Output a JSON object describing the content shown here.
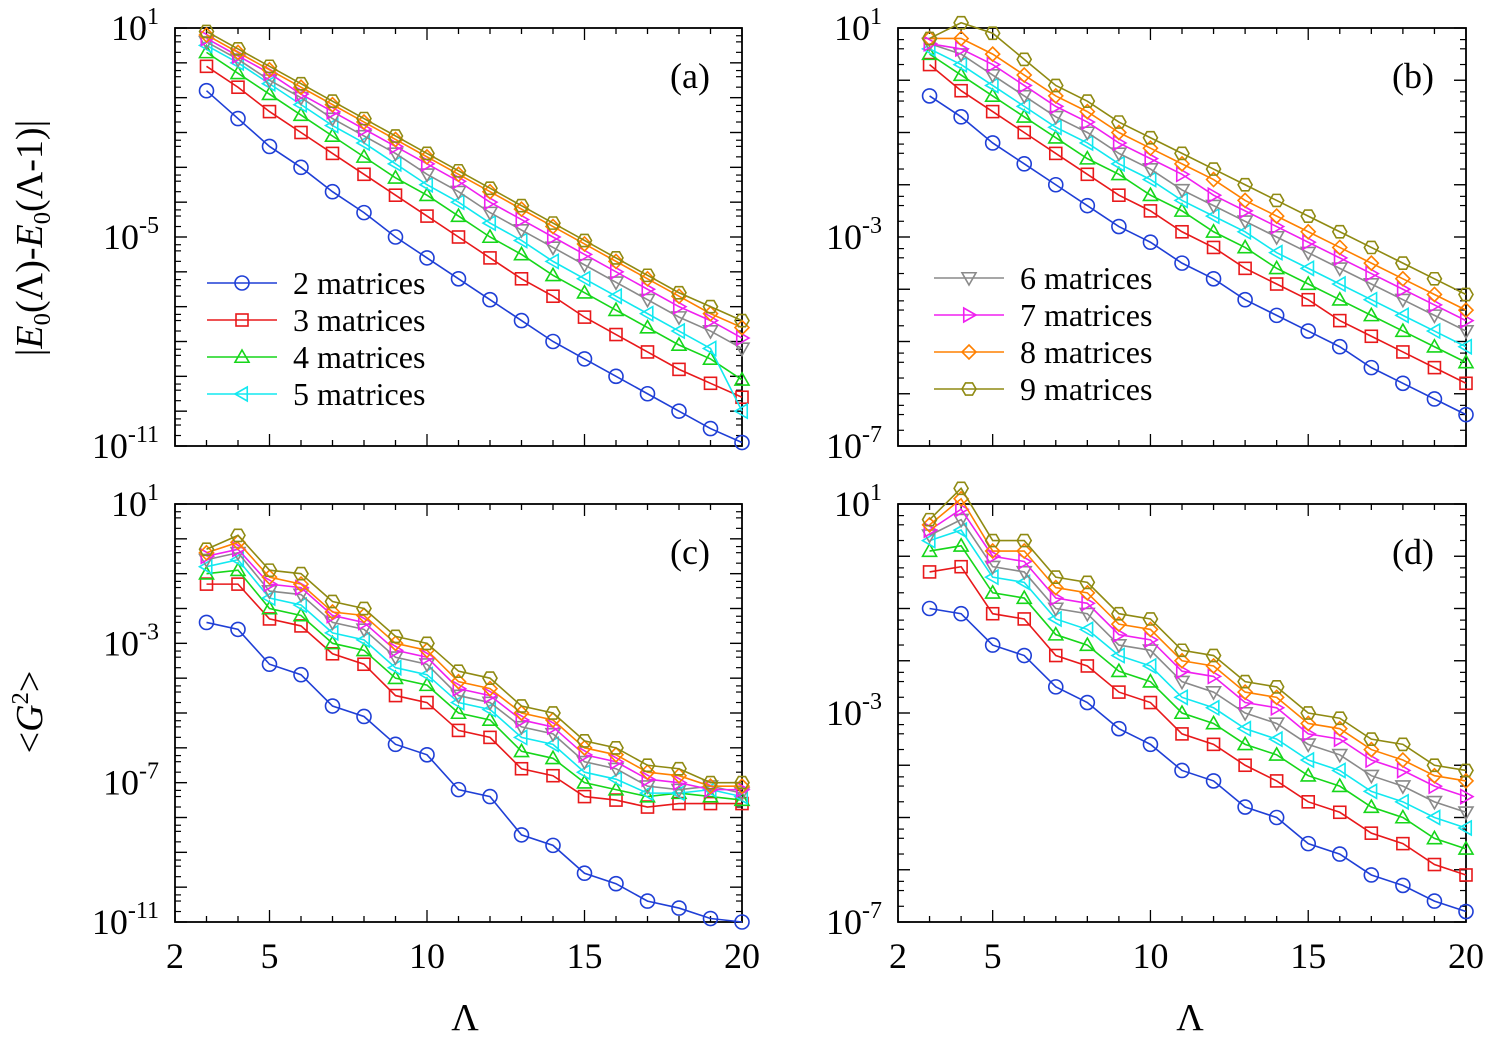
{
  "figure": {
    "ylabel_top": {
      "parts": [
        {
          "t": "|",
          "i": false
        },
        {
          "t": "E",
          "i": true
        },
        {
          "t": "0",
          "sub": true
        },
        {
          "t": "(Λ)-",
          "i": false
        },
        {
          "t": "E",
          "i": true
        },
        {
          "t": "0",
          "sub": true
        },
        {
          "t": "(Λ-1)|",
          "i": false
        }
      ]
    },
    "ylabel_bottom": {
      "parts": [
        {
          "t": "<",
          "i": false
        },
        {
          "t": "G",
          "i": true
        },
        {
          "t": "2",
          "sup": true
        },
        {
          "t": ">",
          "i": false
        }
      ]
    },
    "xlabel": "Λ"
  },
  "legend_names": [
    "2 matrices",
    "3 matrices",
    "4 matrices",
    "5 matrices",
    "6 matrices",
    "7 matrices",
    "8 matrices",
    "9 matrices"
  ],
  "series_style": [
    {
      "color": "#1f3fd6",
      "marker": "circle"
    },
    {
      "color": "#e8191b",
      "marker": "square"
    },
    {
      "color": "#16d61a",
      "marker": "triangle-up"
    },
    {
      "color": "#12e8f0",
      "marker": "triangle-left"
    },
    {
      "color": "#8a8a8a",
      "marker": "triangle-down"
    },
    {
      "color": "#f020f0",
      "marker": "triangle-right"
    },
    {
      "color": "#ff8000",
      "marker": "diamond"
    },
    {
      "color": "#8f8a12",
      "marker": "hexagon"
    }
  ],
  "chart_data": [
    {
      "panel": "(a)",
      "type": "line",
      "yscale": "log",
      "xlim": [
        2,
        20
      ],
      "xticks": [
        2,
        5,
        10,
        15,
        20
      ],
      "ylim_exp": [
        -11,
        1
      ],
      "ytick_labels_exp": [
        1,
        -5,
        -11
      ],
      "x": [
        3,
        4,
        5,
        6,
        7,
        8,
        9,
        10,
        11,
        12,
        13,
        14,
        15,
        16,
        17,
        18,
        19,
        20
      ],
      "legend_series": [
        0,
        1,
        2,
        3
      ],
      "series": [
        {
          "name": "2 matrices",
          "log10": [
            -0.8,
            -1.6,
            -2.4,
            -3.0,
            -3.7,
            -4.3,
            -5.0,
            -5.6,
            -6.2,
            -6.8,
            -7.4,
            -8.0,
            -8.5,
            -9.0,
            -9.5,
            -10.0,
            -10.5,
            -10.9
          ]
        },
        {
          "name": "3 matrices",
          "log10": [
            -0.1,
            -0.7,
            -1.4,
            -2.0,
            -2.6,
            -3.2,
            -3.8,
            -4.4,
            -5.0,
            -5.6,
            -6.2,
            -6.7,
            -7.3,
            -7.8,
            -8.3,
            -8.8,
            -9.2,
            -9.6
          ]
        },
        {
          "name": "4 matrices",
          "log10": [
            0.3,
            -0.3,
            -0.9,
            -1.5,
            -2.1,
            -2.7,
            -3.3,
            -3.8,
            -4.4,
            -5.0,
            -5.5,
            -6.1,
            -6.6,
            -7.1,
            -7.6,
            -8.1,
            -8.5,
            -9.1
          ]
        },
        {
          "name": "5 matrices",
          "log10": [
            0.5,
            0.0,
            -0.6,
            -1.2,
            -1.8,
            -2.3,
            -2.9,
            -3.5,
            -4.0,
            -4.6,
            -5.1,
            -5.7,
            -6.2,
            -6.7,
            -7.2,
            -7.7,
            -8.2,
            -10.0
          ]
        },
        {
          "name": "6 matrices",
          "log10": [
            0.6,
            0.1,
            -0.5,
            -1.0,
            -1.6,
            -2.1,
            -2.6,
            -3.2,
            -3.7,
            -4.3,
            -4.8,
            -5.3,
            -5.8,
            -6.3,
            -6.8,
            -7.3,
            -7.7,
            -8.2
          ]
        },
        {
          "name": "7 matrices",
          "log10": [
            0.7,
            0.2,
            -0.3,
            -0.9,
            -1.4,
            -1.9,
            -2.4,
            -2.9,
            -3.4,
            -4.0,
            -4.5,
            -5.0,
            -5.5,
            -6.0,
            -6.5,
            -7.0,
            -7.4,
            -7.9
          ]
        },
        {
          "name": "8 matrices",
          "log10": [
            0.8,
            0.3,
            -0.2,
            -0.7,
            -1.2,
            -1.7,
            -2.2,
            -2.7,
            -3.2,
            -3.7,
            -4.2,
            -4.7,
            -5.2,
            -5.7,
            -6.2,
            -6.7,
            -7.2,
            -7.6
          ]
        },
        {
          "name": "9 matrices",
          "log10": [
            0.9,
            0.4,
            -0.1,
            -0.6,
            -1.1,
            -1.6,
            -2.1,
            -2.6,
            -3.1,
            -3.6,
            -4.1,
            -4.6,
            -5.1,
            -5.6,
            -6.1,
            -6.6,
            -7.0,
            -7.4
          ]
        }
      ]
    },
    {
      "panel": "(b)",
      "type": "line",
      "yscale": "log",
      "xlim": [
        2,
        20
      ],
      "xticks": [
        2,
        5,
        10,
        15,
        20
      ],
      "ylim_exp": [
        -7,
        1
      ],
      "ytick_labels_exp": [
        1,
        -3,
        -7
      ],
      "x": [
        3,
        4,
        5,
        6,
        7,
        8,
        9,
        10,
        11,
        12,
        13,
        14,
        15,
        16,
        17,
        18,
        19,
        20
      ],
      "legend_series": [
        4,
        5,
        6,
        7
      ],
      "series": [
        {
          "name": "2 matrices",
          "log10": [
            -0.3,
            -0.7,
            -1.2,
            -1.6,
            -2.0,
            -2.4,
            -2.8,
            -3.1,
            -3.5,
            -3.8,
            -4.2,
            -4.5,
            -4.8,
            -5.1,
            -5.5,
            -5.8,
            -6.1,
            -6.4
          ]
        },
        {
          "name": "3 matrices",
          "log10": [
            0.3,
            -0.2,
            -0.6,
            -1.0,
            -1.4,
            -1.8,
            -2.2,
            -2.5,
            -2.9,
            -3.2,
            -3.6,
            -3.9,
            -4.2,
            -4.6,
            -4.9,
            -5.2,
            -5.5,
            -5.8
          ]
        },
        {
          "name": "4 matrices",
          "log10": [
            0.5,
            0.1,
            -0.3,
            -0.7,
            -1.1,
            -1.5,
            -1.8,
            -2.2,
            -2.5,
            -2.9,
            -3.2,
            -3.6,
            -3.9,
            -4.2,
            -4.5,
            -4.8,
            -5.1,
            -5.4
          ]
        },
        {
          "name": "5 matrices",
          "log10": [
            0.6,
            0.3,
            -0.1,
            -0.5,
            -0.9,
            -1.2,
            -1.6,
            -1.9,
            -2.3,
            -2.6,
            -2.9,
            -3.3,
            -3.6,
            -3.9,
            -4.2,
            -4.5,
            -4.8,
            -5.1
          ]
        },
        {
          "name": "6 matrices",
          "log10": [
            0.7,
            0.5,
            0.1,
            -0.3,
            -0.7,
            -1.0,
            -1.4,
            -1.7,
            -2.1,
            -2.4,
            -2.7,
            -3.0,
            -3.3,
            -3.6,
            -3.9,
            -4.2,
            -4.5,
            -4.8
          ]
        },
        {
          "name": "7 matrices",
          "log10": [
            0.7,
            0.6,
            0.3,
            -0.1,
            -0.5,
            -0.8,
            -1.2,
            -1.5,
            -1.8,
            -2.2,
            -2.5,
            -2.8,
            -3.1,
            -3.4,
            -3.7,
            -4.0,
            -4.3,
            -4.6
          ]
        },
        {
          "name": "8 matrices",
          "log10": [
            0.8,
            0.8,
            0.5,
            0.1,
            -0.3,
            -0.6,
            -1.0,
            -1.3,
            -1.6,
            -1.9,
            -2.3,
            -2.6,
            -2.9,
            -3.2,
            -3.5,
            -3.8,
            -4.1,
            -4.4
          ]
        },
        {
          "name": "9 matrices",
          "log10": [
            0.8,
            1.1,
            0.9,
            0.4,
            -0.1,
            -0.4,
            -0.8,
            -1.1,
            -1.4,
            -1.7,
            -2.0,
            -2.3,
            -2.6,
            -2.9,
            -3.2,
            -3.5,
            -3.8,
            -4.1
          ]
        }
      ]
    },
    {
      "panel": "(c)",
      "type": "line",
      "yscale": "log",
      "xlim": [
        2,
        20
      ],
      "xticks": [
        2,
        5,
        10,
        15,
        20
      ],
      "ylim_exp": [
        -11,
        1
      ],
      "ytick_labels_exp": [
        1,
        -3,
        -7,
        -11
      ],
      "x": [
        3,
        4,
        5,
        6,
        7,
        8,
        9,
        10,
        11,
        12,
        13,
        14,
        15,
        16,
        17,
        18,
        19,
        20
      ],
      "legend_series": [],
      "series": [
        {
          "name": "2 matrices",
          "log10": [
            -2.4,
            -2.6,
            -3.6,
            -3.9,
            -4.8,
            -5.1,
            -5.9,
            -6.2,
            -7.2,
            -7.4,
            -8.5,
            -8.8,
            -9.6,
            -9.9,
            -10.4,
            -10.6,
            -10.9,
            -11.0
          ]
        },
        {
          "name": "3 matrices",
          "log10": [
            -1.3,
            -1.3,
            -2.3,
            -2.5,
            -3.3,
            -3.6,
            -4.5,
            -4.7,
            -5.5,
            -5.7,
            -6.6,
            -6.8,
            -7.4,
            -7.5,
            -7.7,
            -7.6,
            -7.6,
            -7.6
          ]
        },
        {
          "name": "4 matrices",
          "log10": [
            -1.0,
            -0.9,
            -2.0,
            -2.2,
            -3.0,
            -3.2,
            -4.0,
            -4.2,
            -5.0,
            -5.2,
            -6.1,
            -6.3,
            -7.0,
            -7.2,
            -7.4,
            -7.3,
            -7.4,
            -7.5
          ]
        },
        {
          "name": "5 matrices",
          "log10": [
            -0.8,
            -0.6,
            -1.7,
            -1.9,
            -2.7,
            -2.9,
            -3.7,
            -3.9,
            -4.7,
            -4.9,
            -5.7,
            -5.9,
            -6.7,
            -6.9,
            -7.3,
            -7.3,
            -7.2,
            -7.4
          ]
        },
        {
          "name": "6 matrices",
          "log10": [
            -0.6,
            -0.4,
            -1.5,
            -1.6,
            -2.4,
            -2.6,
            -3.4,
            -3.6,
            -4.5,
            -4.7,
            -5.4,
            -5.6,
            -6.4,
            -6.6,
            -7.1,
            -7.2,
            -7.1,
            -7.3
          ]
        },
        {
          "name": "7 matrices",
          "log10": [
            -0.5,
            -0.3,
            -1.3,
            -1.4,
            -2.2,
            -2.4,
            -3.2,
            -3.4,
            -4.3,
            -4.5,
            -5.2,
            -5.4,
            -6.2,
            -6.4,
            -6.9,
            -7.0,
            -7.2,
            -7.2
          ]
        },
        {
          "name": "8 matrices",
          "log10": [
            -0.4,
            -0.1,
            -1.1,
            -1.3,
            -2.1,
            -2.2,
            -3.0,
            -3.2,
            -4.1,
            -4.3,
            -5.0,
            -5.2,
            -6.0,
            -6.2,
            -6.7,
            -6.8,
            -7.1,
            -7.1
          ]
        },
        {
          "name": "9 matrices",
          "log10": [
            -0.3,
            0.1,
            -0.9,
            -1.0,
            -1.8,
            -2.0,
            -2.8,
            -3.0,
            -3.8,
            -4.0,
            -4.8,
            -5.0,
            -5.8,
            -6.0,
            -6.5,
            -6.6,
            -7.0,
            -7.0
          ]
        }
      ]
    },
    {
      "panel": "(d)",
      "type": "line",
      "yscale": "log",
      "xlim": [
        2,
        20
      ],
      "xticks": [
        2,
        5,
        10,
        15,
        20
      ],
      "ylim_exp": [
        -7,
        1
      ],
      "ytick_labels_exp": [
        1,
        -3,
        -7
      ],
      "x": [
        3,
        4,
        5,
        6,
        7,
        8,
        9,
        10,
        11,
        12,
        13,
        14,
        15,
        16,
        17,
        18,
        19,
        20
      ],
      "legend_series": [],
      "series": [
        {
          "name": "2 matrices",
          "log10": [
            -1.0,
            -1.1,
            -1.7,
            -1.9,
            -2.5,
            -2.8,
            -3.3,
            -3.6,
            -4.1,
            -4.3,
            -4.8,
            -5.0,
            -5.5,
            -5.7,
            -6.1,
            -6.3,
            -6.6,
            -6.8
          ]
        },
        {
          "name": "3 matrices",
          "log10": [
            -0.3,
            -0.2,
            -1.1,
            -1.2,
            -1.9,
            -2.1,
            -2.6,
            -2.8,
            -3.4,
            -3.6,
            -4.0,
            -4.3,
            -4.7,
            -4.9,
            -5.3,
            -5.5,
            -5.9,
            -6.1
          ]
        },
        {
          "name": "4 matrices",
          "log10": [
            0.1,
            0.2,
            -0.7,
            -0.8,
            -1.5,
            -1.7,
            -2.2,
            -2.4,
            -3.0,
            -3.2,
            -3.6,
            -3.8,
            -4.2,
            -4.4,
            -4.8,
            -5.0,
            -5.4,
            -5.6
          ]
        },
        {
          "name": "5 matrices",
          "log10": [
            0.3,
            0.5,
            -0.4,
            -0.5,
            -1.2,
            -1.4,
            -1.9,
            -2.1,
            -2.7,
            -2.9,
            -3.3,
            -3.5,
            -3.9,
            -4.1,
            -4.5,
            -4.7,
            -5.0,
            -5.2
          ]
        },
        {
          "name": "6 matrices",
          "log10": [
            0.4,
            0.7,
            -0.2,
            -0.3,
            -1.0,
            -1.1,
            -1.7,
            -1.8,
            -2.4,
            -2.6,
            -3.0,
            -3.2,
            -3.6,
            -3.8,
            -4.2,
            -4.4,
            -4.7,
            -4.9
          ]
        },
        {
          "name": "7 matrices",
          "log10": [
            0.5,
            0.9,
            0.0,
            -0.1,
            -0.8,
            -0.9,
            -1.5,
            -1.6,
            -2.2,
            -2.3,
            -2.8,
            -2.9,
            -3.4,
            -3.5,
            -3.9,
            -4.1,
            -4.4,
            -4.6
          ]
        },
        {
          "name": "8 matrices",
          "log10": [
            0.6,
            1.1,
            0.1,
            0.1,
            -0.6,
            -0.7,
            -1.3,
            -1.4,
            -2.0,
            -2.1,
            -2.6,
            -2.7,
            -3.2,
            -3.3,
            -3.7,
            -3.9,
            -4.2,
            -4.3
          ]
        },
        {
          "name": "9 matrices",
          "log10": [
            0.7,
            1.3,
            0.3,
            0.3,
            -0.4,
            -0.5,
            -1.1,
            -1.2,
            -1.8,
            -1.9,
            -2.4,
            -2.5,
            -3.0,
            -3.1,
            -3.5,
            -3.6,
            -4.0,
            -4.1
          ]
        }
      ]
    }
  ]
}
